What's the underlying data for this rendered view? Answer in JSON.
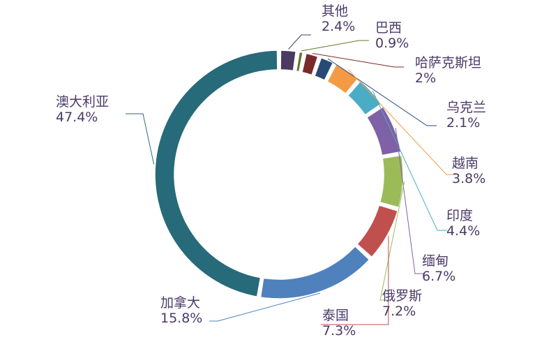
{
  "chart_data": {
    "type": "pie",
    "title": "",
    "legend": "none",
    "data_labels": "outside-with-leader-lines",
    "slices": [
      {
        "name": "其他",
        "value": 2.4,
        "label": "2.4%",
        "color": "#4b3a62"
      },
      {
        "name": "巴西",
        "value": 0.9,
        "label": "0.9%",
        "color": "#5c7a2c"
      },
      {
        "name": "哈萨克斯坦",
        "value": 2,
        "label": "2%",
        "color": "#7b2a2a"
      },
      {
        "name": "乌克兰",
        "value": 2.1,
        "label": "2.1%",
        "color": "#284a74"
      },
      {
        "name": "越南",
        "value": 3.8,
        "label": "3.8%",
        "color": "#f59a44"
      },
      {
        "name": "印度",
        "value": 4.4,
        "label": "4.4%",
        "color": "#4bacc6"
      },
      {
        "name": "缅甸",
        "value": 6.7,
        "label": "6.7%",
        "color": "#7e61a6"
      },
      {
        "name": "俄罗斯",
        "value": 7.2,
        "label": "7.2%",
        "color": "#9bbb59"
      },
      {
        "name": "泰国",
        "value": 7.3,
        "label": "7.3%",
        "color": "#c0504d"
      },
      {
        "name": "加拿大",
        "value": 15.8,
        "label": "15.8%",
        "color": "#4f81bd"
      },
      {
        "name": "澳大利亚",
        "value": 47.4,
        "label": "47.4%",
        "color": "#276a7a"
      }
    ]
  }
}
